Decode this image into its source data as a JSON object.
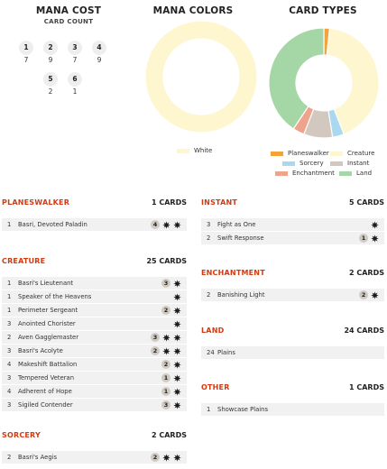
{
  "mana_cost": {
    "title": "MANA COST",
    "subtitle": "CARD COUNT",
    "cells": [
      {
        "cost": "1",
        "count": "7"
      },
      {
        "cost": "2",
        "count": "9"
      },
      {
        "cost": "3",
        "count": "7"
      },
      {
        "cost": "4",
        "count": "9"
      },
      {
        "cost": "5",
        "count": "2"
      },
      {
        "cost": "6",
        "count": "1"
      }
    ]
  },
  "mana_colors": {
    "title": "MANA COLORS",
    "legend": [
      {
        "label": "White",
        "color": "#fdf6cf"
      }
    ],
    "slices": [
      {
        "label": "White",
        "value": 1,
        "color": "#fdf6cf"
      }
    ]
  },
  "card_types": {
    "title": "CARD TYPES",
    "legend": [
      {
        "label": "Planeswalker",
        "color": "#f2a33a"
      },
      {
        "label": "Creature",
        "color": "#fdf6cf"
      },
      {
        "label": "Sorcery",
        "color": "#a9d8ef"
      },
      {
        "label": "Instant",
        "color": "#d2c8bf"
      },
      {
        "label": "Enchantment",
        "color": "#f0a38c"
      },
      {
        "label": "Land",
        "color": "#a5d6a5"
      }
    ],
    "slices": [
      {
        "label": "Planeswalker",
        "value": 1,
        "color": "#f2a33a"
      },
      {
        "label": "Creature",
        "value": 25,
        "color": "#fdf6cf"
      },
      {
        "label": "Sorcery",
        "value": 2,
        "color": "#a9d8ef"
      },
      {
        "label": "Instant",
        "value": 5,
        "color": "#d2c8bf"
      },
      {
        "label": "Enchantment",
        "value": 2,
        "color": "#f0a38c"
      },
      {
        "label": "Land",
        "value": 24,
        "color": "#a5d6a5"
      }
    ]
  },
  "sections": {
    "planeswalker": {
      "title": "PLANESWALKER",
      "count": "1 CARDS",
      "rows": [
        {
          "qty": "1",
          "name": "Basri, Devoted Paladin",
          "cost_num": "4",
          "w": 2
        }
      ]
    },
    "creature": {
      "title": "CREATURE",
      "count": "25 CARDS",
      "rows": [
        {
          "qty": "1",
          "name": "Basri's Lieutenant",
          "cost_num": "3",
          "w": 1
        },
        {
          "qty": "1",
          "name": "Speaker of the Heavens",
          "cost_num": "",
          "w": 1
        },
        {
          "qty": "1",
          "name": "Perimeter Sergeant",
          "cost_num": "2",
          "w": 1
        },
        {
          "qty": "3",
          "name": "Anointed Chorister",
          "cost_num": "",
          "w": 1
        },
        {
          "qty": "2",
          "name": "Aven Gagglemaster",
          "cost_num": "3",
          "w": 2
        },
        {
          "qty": "3",
          "name": "Basri's Acolyte",
          "cost_num": "2",
          "w": 2
        },
        {
          "qty": "4",
          "name": "Makeshift Battalion",
          "cost_num": "2",
          "w": 1
        },
        {
          "qty": "3",
          "name": "Tempered Veteran",
          "cost_num": "1",
          "w": 1
        },
        {
          "qty": "4",
          "name": "Adherent of Hope",
          "cost_num": "1",
          "w": 1
        },
        {
          "qty": "3",
          "name": "Sigiled Contender",
          "cost_num": "3",
          "w": 1
        }
      ]
    },
    "sorcery": {
      "title": "SORCERY",
      "count": "2 CARDS",
      "rows": [
        {
          "qty": "2",
          "name": "Basri's Aegis",
          "cost_num": "2",
          "w": 2
        }
      ]
    },
    "instant": {
      "title": "INSTANT",
      "count": "5 CARDS",
      "rows": [
        {
          "qty": "3",
          "name": "Fight as One",
          "cost_num": "",
          "w": 1
        },
        {
          "qty": "2",
          "name": "Swift Response",
          "cost_num": "1",
          "w": 1
        }
      ]
    },
    "enchantment": {
      "title": "ENCHANTMENT",
      "count": "2 CARDS",
      "rows": [
        {
          "qty": "2",
          "name": "Banishing Light",
          "cost_num": "2",
          "w": 1
        }
      ]
    },
    "land": {
      "title": "LAND",
      "count": "24 CARDS",
      "rows": [
        {
          "qty": "24",
          "name": "Plains",
          "cost_num": "",
          "w": 0
        }
      ]
    },
    "other": {
      "title": "OTHER",
      "count": "1 CARDS",
      "rows": [
        {
          "qty": "1",
          "name": "Showcase Plains",
          "cost_num": "",
          "w": 0
        }
      ]
    }
  }
}
